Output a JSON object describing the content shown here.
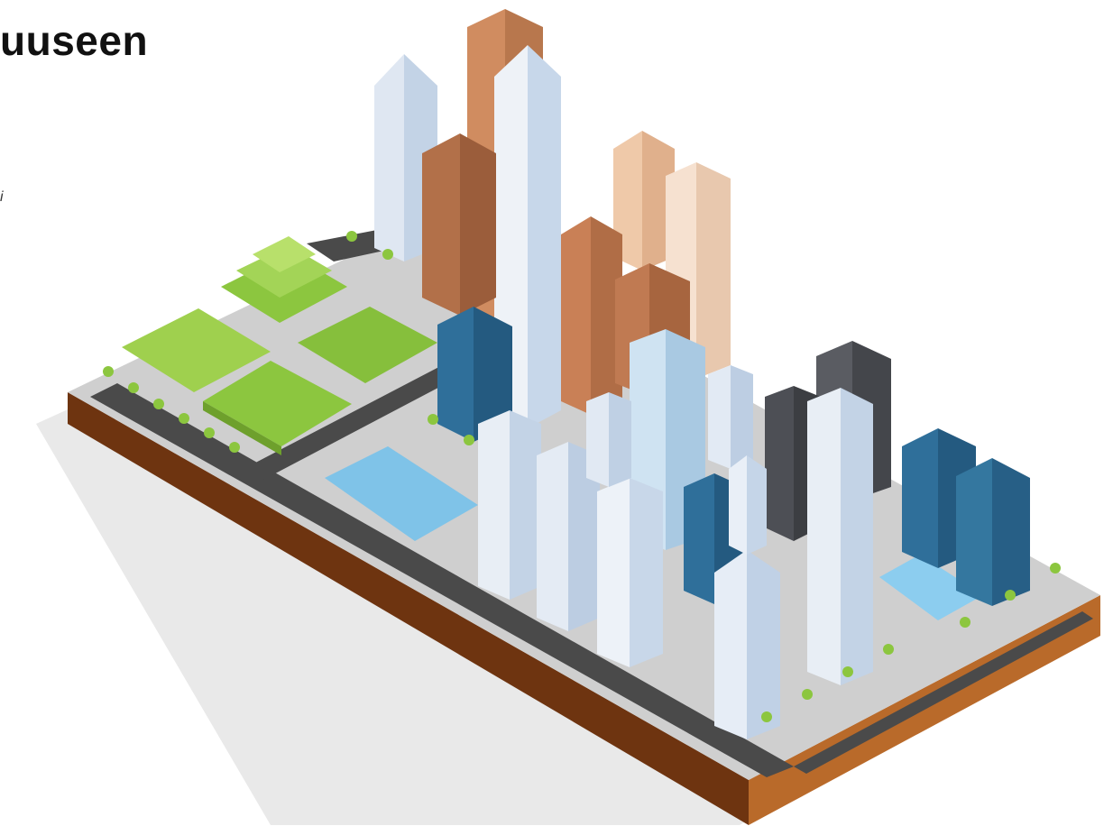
{
  "heading": "uuseen",
  "italic_fragment": "i",
  "illustration": {
    "subject": "isometric-city",
    "colors": {
      "ground_brown": "#7a3a12",
      "road": "#4a4a4a",
      "sidewalk": "#d9d9d9",
      "green_block": "#8cc63f",
      "water": "#7fc3e8",
      "glass_blue": "#2f6f9a",
      "copper_tower": "#c9835a",
      "white_tower": "#e8eef5",
      "dark_tower": "#4d4f55"
    }
  }
}
